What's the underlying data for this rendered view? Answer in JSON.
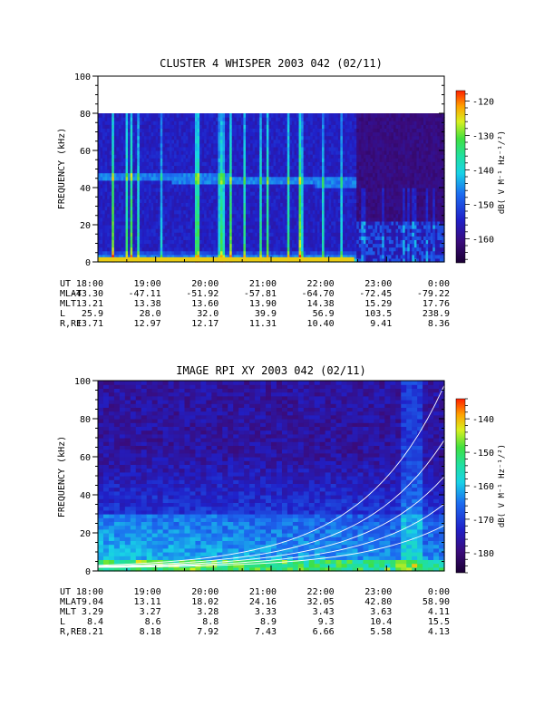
{
  "chart_data": [
    {
      "type": "heatmap",
      "title": "CLUSTER 4 WHISPER 2003 042 (02/11)",
      "ylabel": "FREQUENCY (kHz)",
      "ylim": [
        0,
        100
      ],
      "y_ticks": [
        "0",
        "20",
        "40",
        "60",
        "80",
        "100"
      ],
      "data_ymax": 80,
      "x_ticks": [
        "18:00",
        "19:00",
        "20:00",
        "21:00",
        "22:00",
        "23:00",
        "0:00"
      ],
      "colorbar": {
        "label": "dB( V M⁻¹ Hz⁻¹/²)",
        "range": [
          -167,
          -117
        ],
        "ticks": [
          "-120",
          "-130",
          "-140",
          "-150",
          "-160"
        ],
        "tick_values": [
          -120,
          -130,
          -140,
          -150,
          -160
        ]
      },
      "ephemeris": [
        {
          "label": "UT",
          "values": [
            "18:00",
            "19:00",
            "20:00",
            "21:00",
            "22:00",
            "23:00",
            "0:00"
          ]
        },
        {
          "label": "MLAT",
          "values": [
            "-43.30",
            "-47.11",
            "-51.92",
            "-57.81",
            "-64.70",
            "-72.45",
            "-79.22"
          ]
        },
        {
          "label": "MLT",
          "values": [
            "13.21",
            "13.38",
            "13.60",
            "13.90",
            "14.38",
            "15.29",
            "17.76"
          ]
        },
        {
          "label": "L",
          "values": [
            "25.9",
            "28.0",
            "32.0",
            "39.9",
            "56.9",
            "103.5",
            "238.9"
          ]
        },
        {
          "label": "R,RE",
          "values": [
            "13.71",
            "12.97",
            "12.17",
            "11.31",
            "10.40",
            "9.41",
            "8.36"
          ]
        }
      ]
    },
    {
      "type": "heatmap",
      "title": "IMAGE RPI XY 2003 042 (02/11)",
      "ylabel": "FREQUENCY (kHz)",
      "ylim": [
        0,
        100
      ],
      "y_ticks": [
        "0",
        "20",
        "40",
        "60",
        "80",
        "100"
      ],
      "data_ymax": 100,
      "x_ticks": [
        "18:00",
        "19:00",
        "20:00",
        "21:00",
        "22:00",
        "23:00",
        "0:00"
      ],
      "colorbar": {
        "label": "dB( V M⁻¹ Hz⁻¹/²)",
        "range": [
          -186,
          -134
        ],
        "ticks": [
          "-140",
          "-150",
          "-160",
          "-170",
          "-180"
        ],
        "tick_values": [
          -140,
          -150,
          -160,
          -170,
          -180
        ]
      },
      "ephemeris": [
        {
          "label": "UT",
          "values": [
            "18:00",
            "19:00",
            "20:00",
            "21:00",
            "22:00",
            "23:00",
            "0:00"
          ]
        },
        {
          "label": "MLAT",
          "values": [
            "9.04",
            "13.11",
            "18.02",
            "24.16",
            "32.05",
            "42.80",
            "58.90"
          ]
        },
        {
          "label": "MLT",
          "values": [
            "3.29",
            "3.27",
            "3.28",
            "3.33",
            "3.43",
            "3.63",
            "4.11"
          ]
        },
        {
          "label": "L",
          "values": [
            "8.4",
            "8.6",
            "8.8",
            "8.9",
            "9.3",
            "10.4",
            "15.5"
          ]
        },
        {
          "label": "R,RE",
          "values": [
            "8.21",
            "8.18",
            "7.92",
            "7.43",
            "6.66",
            "5.58",
            "4.13"
          ]
        }
      ]
    }
  ]
}
